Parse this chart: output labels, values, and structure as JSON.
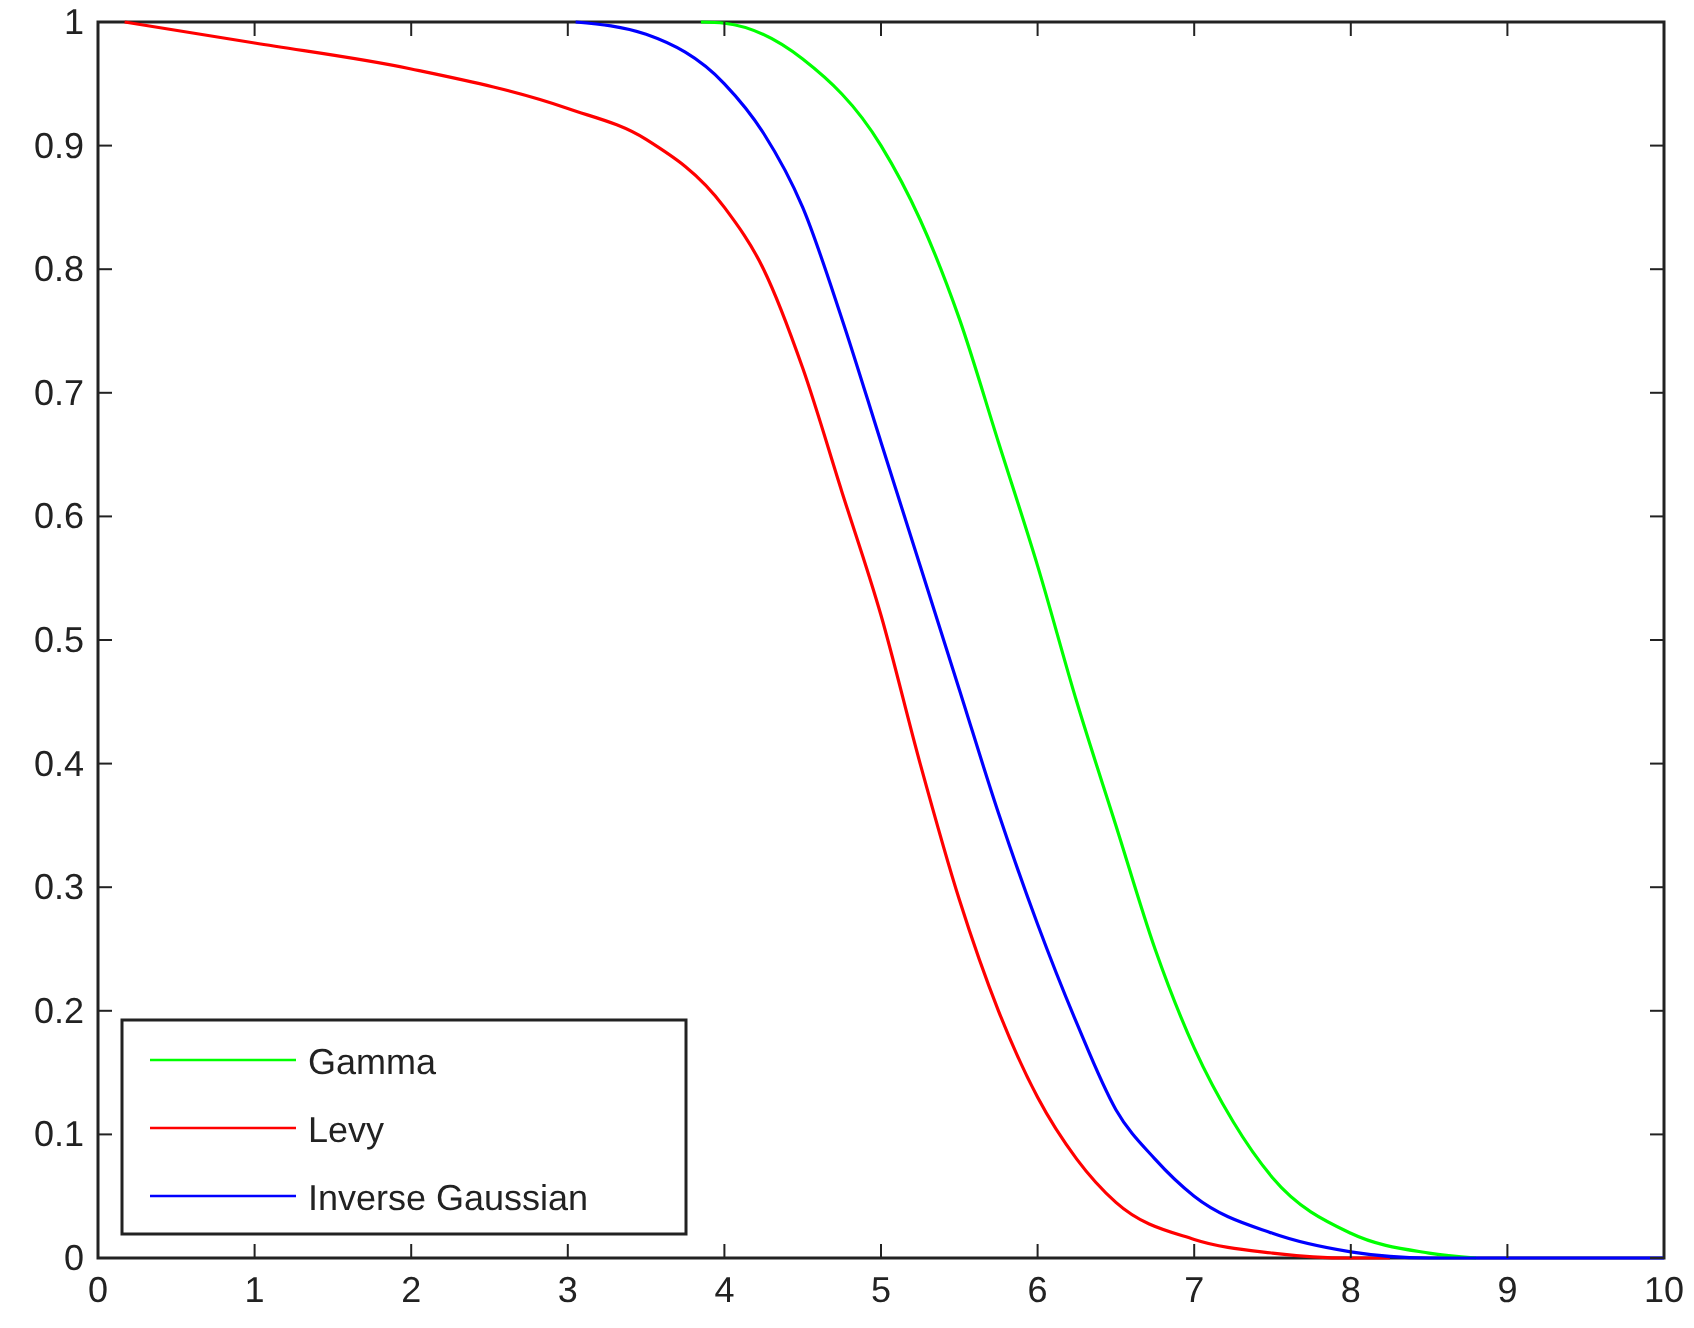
{
  "chart_data": {
    "type": "line",
    "xlim": [
      0,
      10
    ],
    "ylim": [
      0,
      1
    ],
    "xticks": [
      0,
      1,
      2,
      3,
      4,
      5,
      6,
      7,
      8,
      9,
      10
    ],
    "yticks": [
      0,
      0.1,
      0.2,
      0.3,
      0.4,
      0.5,
      0.6,
      0.7,
      0.8,
      0.9,
      1
    ],
    "grid": false,
    "legend": "bottom left",
    "marker": "none",
    "line_style": "solid",
    "series": [
      {
        "name": "Gamma",
        "color": "#00ff00",
        "x": [
          3.85,
          4,
          4.5,
          5,
          5.25,
          5.5,
          5.75,
          6,
          6.25,
          6.5,
          6.75,
          7,
          7.25,
          7.5,
          8,
          8.5,
          8.8
        ],
        "values": [
          1,
          0.999,
          0.97,
          0.9,
          0.84,
          0.76,
          0.66,
          0.56,
          0.45,
          0.35,
          0.25,
          0.17,
          0.11,
          0.065,
          0.02,
          0.004,
          0
        ]
      },
      {
        "name": "Levy",
        "color": "#ff0000",
        "x": [
          0.17,
          1,
          2,
          3,
          3.5,
          4,
          4.25,
          4.5,
          4.75,
          5,
          5.25,
          5.5,
          5.75,
          6,
          6.25,
          6.5,
          7,
          7.5,
          8,
          8.25
        ],
        "values": [
          1,
          0.983,
          0.962,
          0.93,
          0.905,
          0.85,
          0.8,
          0.72,
          0.62,
          0.52,
          0.4,
          0.29,
          0.2,
          0.13,
          0.08,
          0.045,
          0.015,
          0.004,
          0,
          0
        ]
      },
      {
        "name": "Inverse Gaussian",
        "color": "#0000ff",
        "x": [
          3.05,
          3.5,
          4,
          4.25,
          4.5,
          4.75,
          5,
          5.25,
          5.5,
          5.75,
          6,
          6.25,
          6.5,
          6.75,
          7,
          7.5,
          8,
          8.5,
          10
        ],
        "values": [
          1,
          0.99,
          0.95,
          0.91,
          0.85,
          0.76,
          0.66,
          0.56,
          0.46,
          0.36,
          0.27,
          0.19,
          0.12,
          0.08,
          0.05,
          0.02,
          0.005,
          0,
          0
        ]
      }
    ]
  }
}
